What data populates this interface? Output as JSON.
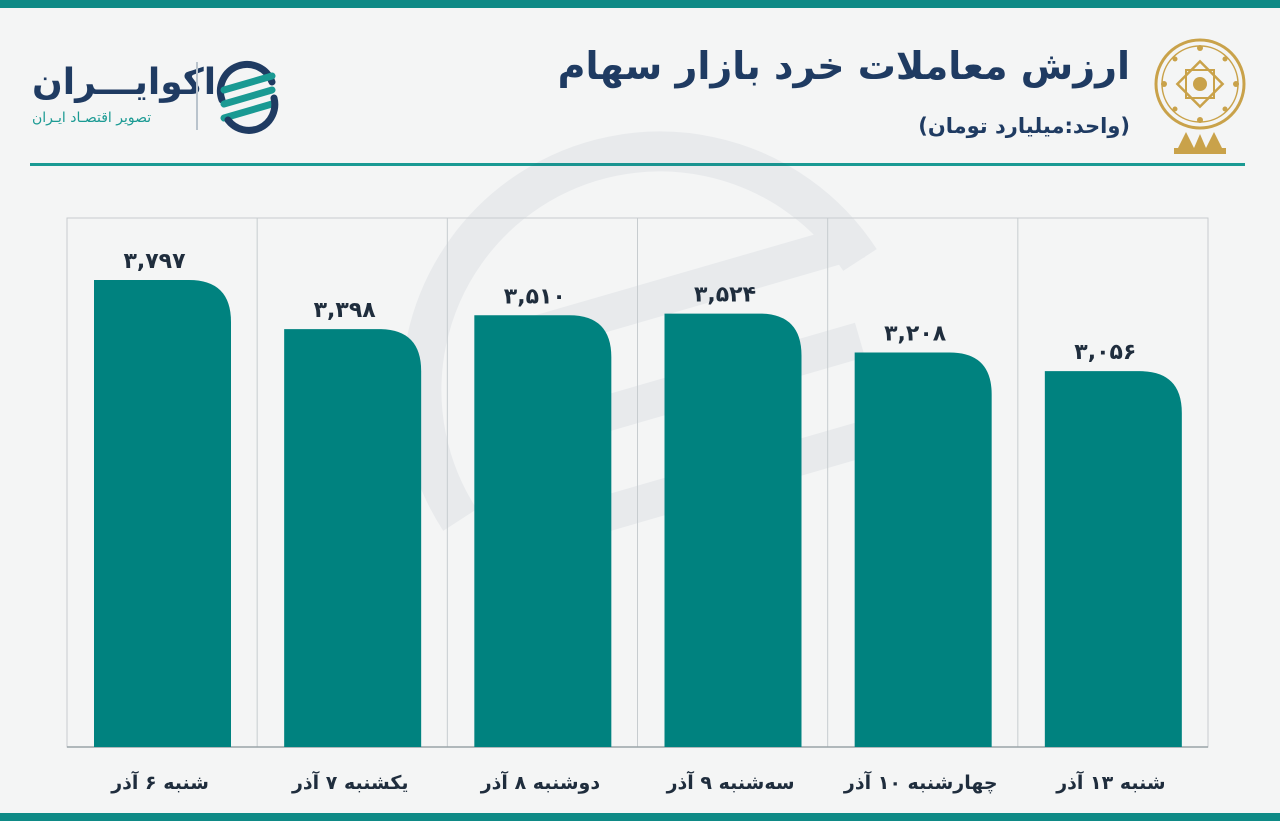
{
  "header": {
    "title": "ارزش معاملات خرد بازار سهام",
    "subtitle": "(واحد:میلیارد تومان)"
  },
  "brand": {
    "name": "اکوایـــران",
    "tagline": "تصویر اقتصـاد ایـران"
  },
  "colors": {
    "bar": "#00827f",
    "accent": "#1a9a93",
    "title": "#1f3b62",
    "emblem": "#c9a24a"
  },
  "chart_data": {
    "type": "bar",
    "categories": [
      "شنبه ۶ آذر",
      "یکشنبه ۷ آذر",
      "دوشنبه ۸ آذر",
      "سه‌شنبه ۹ آذر",
      "چهارشنبه ۱۰ آذر",
      "شنبه ۱۳ آذر"
    ],
    "values": [
      3797,
      3398,
      3510,
      3524,
      3208,
      3056
    ],
    "value_labels": [
      "۳,۷۹۷",
      "۳,۳۹۸",
      "۳,۵۱۰",
      "۳,۵۲۴",
      "۳,۲۰۸",
      "۳,۰۵۶"
    ],
    "title": "ارزش معاملات خرد بازار سهام",
    "ylabel": "",
    "xlabel": "",
    "grid": "vertical separators"
  }
}
